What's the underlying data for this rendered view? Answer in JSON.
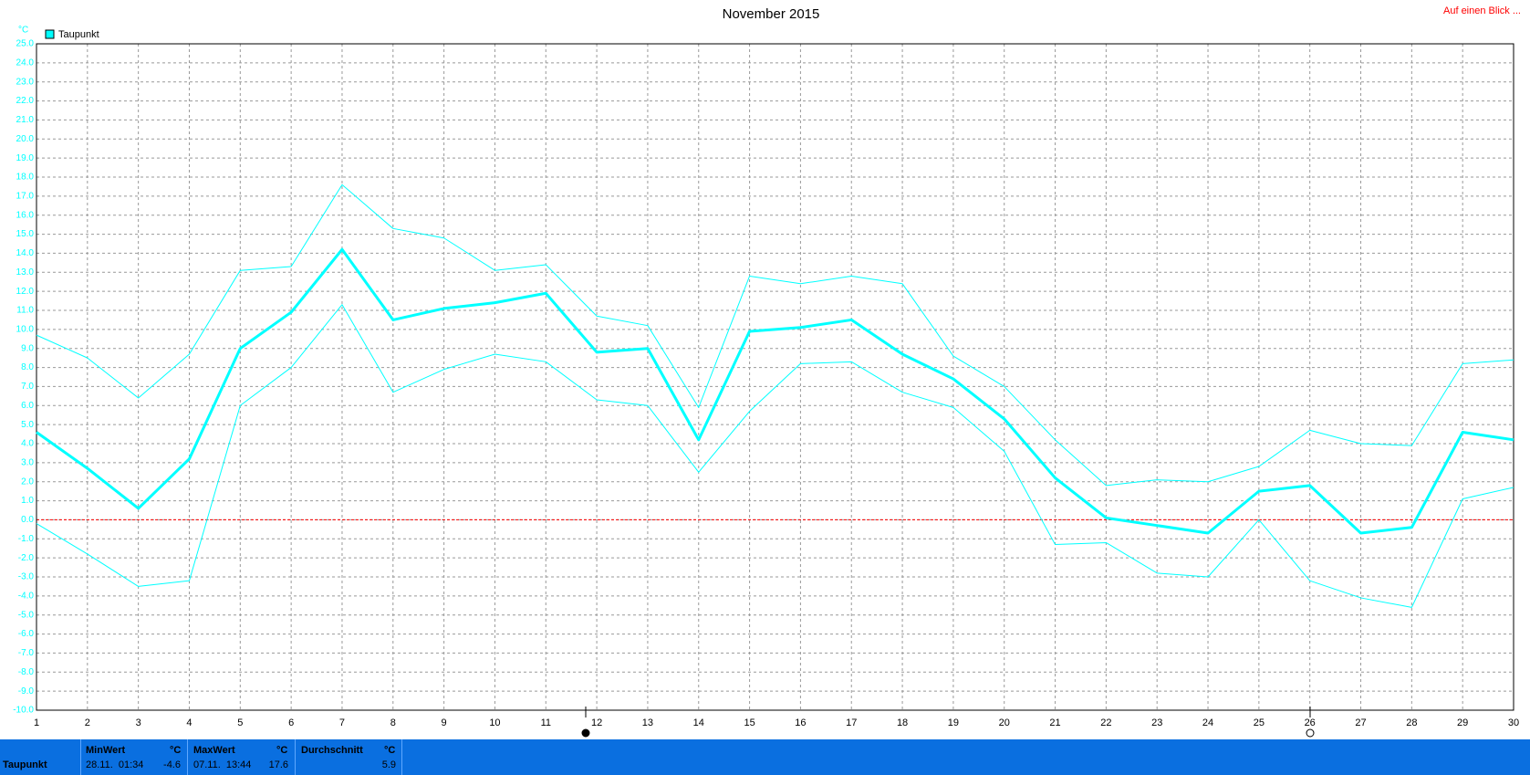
{
  "header": {
    "link": "Auf einen Blick ..."
  },
  "chart_data": {
    "type": "line",
    "title": "November 2015",
    "unit": "°C",
    "legend_label": "Taupunkt",
    "legend_color": "#00ffff",
    "x": [
      1,
      2,
      3,
      4,
      5,
      6,
      7,
      8,
      9,
      10,
      11,
      12,
      13,
      14,
      15,
      16,
      17,
      18,
      19,
      20,
      21,
      22,
      23,
      24,
      25,
      26,
      27,
      28,
      29,
      30
    ],
    "xlim": [
      1,
      30
    ],
    "xticks": [
      1,
      2,
      3,
      4,
      5,
      6,
      7,
      8,
      9,
      10,
      11,
      12,
      13,
      14,
      15,
      16,
      17,
      18,
      19,
      20,
      21,
      22,
      23,
      24,
      25,
      26,
      27,
      28,
      29,
      30
    ],
    "ylim": [
      -10,
      25
    ],
    "yticks": [
      {
        "value": -10,
        "label": "-10.0"
      },
      {
        "value": -9,
        "label": "-9.0"
      },
      {
        "value": -8,
        "label": "-8.0"
      },
      {
        "value": -7,
        "label": "-7.0"
      },
      {
        "value": -6,
        "label": "-6.0"
      },
      {
        "value": -5,
        "label": "-5.0"
      },
      {
        "value": -4,
        "label": "-4.0"
      },
      {
        "value": -3,
        "label": "-3.0"
      },
      {
        "value": -2,
        "label": "-2.0"
      },
      {
        "value": -1,
        "label": "-1.0"
      },
      {
        "value": 0,
        "label": "0.0"
      },
      {
        "value": 1,
        "label": "1.0"
      },
      {
        "value": 2,
        "label": "2.0"
      },
      {
        "value": 3,
        "label": "3.0"
      },
      {
        "value": 4,
        "label": "4.0"
      },
      {
        "value": 5,
        "label": "5.0"
      },
      {
        "value": 6,
        "label": "6.0"
      },
      {
        "value": 7,
        "label": "7.0"
      },
      {
        "value": 8,
        "label": "8.0"
      },
      {
        "value": 9,
        "label": "9.0"
      },
      {
        "value": 10,
        "label": "10.0"
      },
      {
        "value": 11,
        "label": "11.0"
      },
      {
        "value": 12,
        "label": "12.0"
      },
      {
        "value": 13,
        "label": "13.0"
      },
      {
        "value": 14,
        "label": "14.0"
      },
      {
        "value": 15,
        "label": "15.0"
      },
      {
        "value": 16,
        "label": "16.0"
      },
      {
        "value": 17,
        "label": "17.0"
      },
      {
        "value": 18,
        "label": "18.0"
      },
      {
        "value": 19,
        "label": "19.0"
      },
      {
        "value": 20,
        "label": "20.0"
      },
      {
        "value": 21,
        "label": "21.0"
      },
      {
        "value": 22,
        "label": "22.0"
      },
      {
        "value": 23,
        "label": "23.0"
      },
      {
        "value": 24,
        "label": "24.0"
      },
      {
        "value": 25,
        "label": "25.0"
      }
    ],
    "grid": true,
    "zero_line": {
      "value": 0,
      "color": "#ff0000"
    },
    "series": [
      {
        "color": "#00ffff",
        "width": 1,
        "values": [
          9.7,
          8.5,
          6.4,
          8.7,
          13.1,
          13.3,
          17.6,
          15.3,
          14.8,
          13.1,
          13.4,
          10.7,
          10.2,
          5.9,
          12.8,
          12.4,
          12.8,
          12.4,
          8.6,
          7.0,
          4.2,
          1.8,
          2.1,
          2.0,
          2.8,
          4.7,
          4.0,
          3.9,
          8.2,
          8.4
        ]
      },
      {
        "color": "#00ffff",
        "width": 3,
        "values": [
          4.6,
          2.7,
          0.6,
          3.2,
          9.0,
          10.9,
          14.2,
          10.5,
          11.1,
          11.4,
          11.9,
          8.8,
          9.0,
          4.2,
          9.9,
          10.1,
          10.5,
          8.7,
          7.4,
          5.3,
          2.2,
          0.1,
          -0.3,
          -0.7,
          1.5,
          1.8,
          -0.7,
          -0.4,
          4.6,
          4.2
        ]
      },
      {
        "color": "#00ffff",
        "width": 1,
        "values": [
          -0.2,
          -1.8,
          -3.5,
          -3.2,
          6.0,
          8.0,
          11.3,
          6.7,
          7.9,
          8.7,
          8.3,
          6.3,
          6.0,
          2.5,
          5.7,
          8.2,
          8.3,
          6.7,
          5.9,
          3.6,
          -1.3,
          -1.2,
          -2.8,
          -3.0,
          0.0,
          -3.2,
          -4.1,
          -4.6,
          1.1,
          1.7
        ]
      }
    ]
  },
  "stats_table": {
    "row_label": "Taupunkt",
    "columns": [
      {
        "header": "MinWert",
        "unit": "°C",
        "time": "28.11.  01:34",
        "value": "-4.6"
      },
      {
        "header": "MaxWert",
        "unit": "°C",
        "time": "07.11.  13:44",
        "value": "17.6"
      },
      {
        "header": "Durchschnitt",
        "unit": "°C",
        "time": "",
        "value": "5.9"
      }
    ]
  }
}
